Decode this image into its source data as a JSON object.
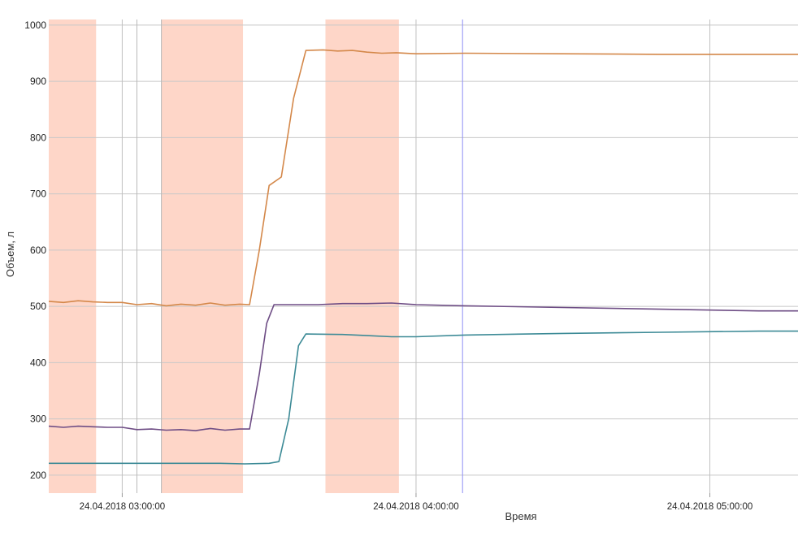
{
  "chart_data": {
    "type": "line",
    "xlabel": "Время",
    "ylabel": "Объем, л",
    "ylim": [
      168,
      1010
    ],
    "yticks": [
      200,
      300,
      400,
      500,
      600,
      700,
      800,
      900,
      1000
    ],
    "xlim": [
      "2018-04-24 02:45:00",
      "2018-04-24 05:18:00"
    ],
    "xticks": [
      {
        "t": "2018-04-24 03:00:00",
        "label": "24.04.2018 03:00:00"
      },
      {
        "t": "2018-04-24 04:00:00",
        "label": "24.04.2018 04:00:00"
      },
      {
        "t": "2018-04-24 05:00:00",
        "label": "24.04.2018 05:00:00"
      }
    ],
    "grid": true,
    "extra_vertical_lines": [
      {
        "t": "2018-04-24 03:03:00",
        "color": "#b8b8b8"
      },
      {
        "t": "2018-04-24 03:08:00",
        "color": "#b8b8b8"
      },
      {
        "t": "2018-04-24 04:09:30",
        "color": "#8f8ff5"
      }
    ],
    "highlighted_intervals": {
      "color": "#fed6c8",
      "ranges": [
        [
          "2018-04-24 02:45:00",
          "2018-04-24 02:54:40"
        ],
        [
          "2018-04-24 03:08:00",
          "2018-04-24 03:24:40"
        ],
        [
          "2018-04-24 03:41:30",
          "2018-04-24 03:56:30"
        ]
      ]
    },
    "series": [
      {
        "color": "#d4884a",
        "points": [
          [
            "2018-04-24 02:45:00",
            509
          ],
          [
            "2018-04-24 02:48:00",
            507
          ],
          [
            "2018-04-24 02:51:00",
            510
          ],
          [
            "2018-04-24 02:54:00",
            508
          ],
          [
            "2018-04-24 02:57:00",
            507
          ],
          [
            "2018-04-24 03:00:00",
            507
          ],
          [
            "2018-04-24 03:03:00",
            503
          ],
          [
            "2018-04-24 03:06:00",
            505
          ],
          [
            "2018-04-24 03:09:00",
            501
          ],
          [
            "2018-04-24 03:12:00",
            504
          ],
          [
            "2018-04-24 03:15:00",
            502
          ],
          [
            "2018-04-24 03:18:00",
            506
          ],
          [
            "2018-04-24 03:21:00",
            502
          ],
          [
            "2018-04-24 03:24:00",
            504
          ],
          [
            "2018-04-24 03:26:00",
            503
          ],
          [
            "2018-04-24 03:28:00",
            600
          ],
          [
            "2018-04-24 03:30:00",
            715
          ],
          [
            "2018-04-24 03:32:30",
            730
          ],
          [
            "2018-04-24 03:35:00",
            870
          ],
          [
            "2018-04-24 03:37:30",
            955
          ],
          [
            "2018-04-24 03:41:00",
            956
          ],
          [
            "2018-04-24 03:44:00",
            954
          ],
          [
            "2018-04-24 03:47:00",
            955
          ],
          [
            "2018-04-24 03:50:00",
            952
          ],
          [
            "2018-04-24 03:53:00",
            950
          ],
          [
            "2018-04-24 03:56:00",
            951
          ],
          [
            "2018-04-24 04:00:00",
            949
          ],
          [
            "2018-04-24 04:10:00",
            950
          ],
          [
            "2018-04-24 04:30:00",
            949
          ],
          [
            "2018-04-24 04:50:00",
            948
          ],
          [
            "2018-04-24 05:10:00",
            948
          ],
          [
            "2018-04-24 05:18:00",
            948
          ]
        ]
      },
      {
        "color": "#6e4d85",
        "points": [
          [
            "2018-04-24 02:45:00",
            287
          ],
          [
            "2018-04-24 02:48:00",
            285
          ],
          [
            "2018-04-24 02:51:00",
            287
          ],
          [
            "2018-04-24 02:54:00",
            286
          ],
          [
            "2018-04-24 02:57:00",
            285
          ],
          [
            "2018-04-24 03:00:00",
            285
          ],
          [
            "2018-04-24 03:03:00",
            281
          ],
          [
            "2018-04-24 03:06:00",
            282
          ],
          [
            "2018-04-24 03:09:00",
            280
          ],
          [
            "2018-04-24 03:12:00",
            281
          ],
          [
            "2018-04-24 03:15:00",
            279
          ],
          [
            "2018-04-24 03:18:00",
            283
          ],
          [
            "2018-04-24 03:21:00",
            280
          ],
          [
            "2018-04-24 03:24:00",
            282
          ],
          [
            "2018-04-24 03:26:00",
            282
          ],
          [
            "2018-04-24 03:28:00",
            380
          ],
          [
            "2018-04-24 03:29:30",
            470
          ],
          [
            "2018-04-24 03:31:00",
            503
          ],
          [
            "2018-04-24 03:35:00",
            503
          ],
          [
            "2018-04-24 03:40:00",
            503
          ],
          [
            "2018-04-24 03:45:00",
            505
          ],
          [
            "2018-04-24 03:50:00",
            505
          ],
          [
            "2018-04-24 03:55:00",
            506
          ],
          [
            "2018-04-24 04:00:00",
            503
          ],
          [
            "2018-04-24 04:10:00",
            501
          ],
          [
            "2018-04-24 04:30:00",
            498
          ],
          [
            "2018-04-24 04:50:00",
            495
          ],
          [
            "2018-04-24 05:10:00",
            492
          ],
          [
            "2018-04-24 05:18:00",
            492
          ]
        ]
      },
      {
        "color": "#3c8a96",
        "points": [
          [
            "2018-04-24 02:45:00",
            221
          ],
          [
            "2018-04-24 02:50:00",
            221
          ],
          [
            "2018-04-24 02:55:00",
            221
          ],
          [
            "2018-04-24 03:00:00",
            221
          ],
          [
            "2018-04-24 03:05:00",
            221
          ],
          [
            "2018-04-24 03:10:00",
            221
          ],
          [
            "2018-04-24 03:15:00",
            221
          ],
          [
            "2018-04-24 03:20:00",
            221
          ],
          [
            "2018-04-24 03:25:00",
            220
          ],
          [
            "2018-04-24 03:30:00",
            221
          ],
          [
            "2018-04-24 03:32:00",
            224
          ],
          [
            "2018-04-24 03:34:00",
            300
          ],
          [
            "2018-04-24 03:36:00",
            430
          ],
          [
            "2018-04-24 03:37:30",
            451
          ],
          [
            "2018-04-24 03:45:00",
            450
          ],
          [
            "2018-04-24 03:50:00",
            448
          ],
          [
            "2018-04-24 03:55:00",
            446
          ],
          [
            "2018-04-24 04:00:00",
            446
          ],
          [
            "2018-04-24 04:10:00",
            449
          ],
          [
            "2018-04-24 04:30:00",
            452
          ],
          [
            "2018-04-24 04:50:00",
            454
          ],
          [
            "2018-04-24 05:10:00",
            456
          ],
          [
            "2018-04-24 05:18:00",
            456
          ]
        ]
      }
    ]
  }
}
